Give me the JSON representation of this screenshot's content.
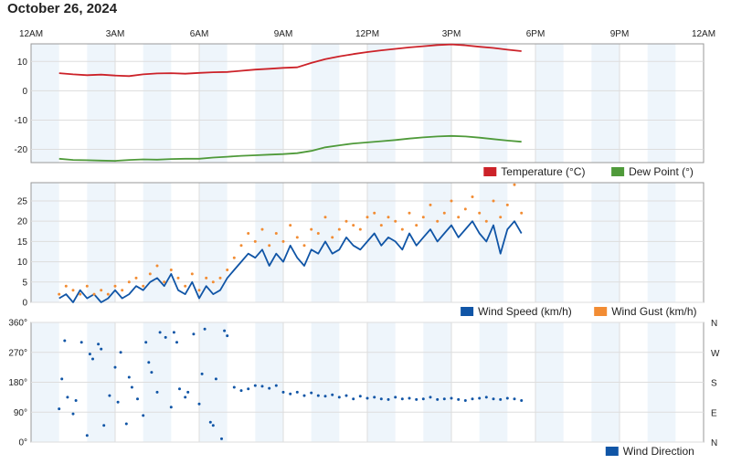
{
  "header": {
    "title": "October 26, 2024"
  },
  "colors": {
    "temperature": "#cc2229",
    "dew_point": "#4f9a3a",
    "wind_speed": "#1055a6",
    "wind_gust": "#f28c33",
    "wind_direction": "#1055a6",
    "band": "#eef5fb",
    "grid": "#dddddd",
    "axis": "#999999"
  },
  "chart_data": [
    {
      "id": "temperature",
      "type": "line",
      "x_range_hours": [
        0,
        24
      ],
      "x_tick_labels": [
        "12AM",
        "3AM",
        "6AM",
        "9AM",
        "12PM",
        "3PM",
        "6PM",
        "9PM",
        "12AM"
      ],
      "ylim": [
        -24.5,
        16
      ],
      "y_ticks": [
        -20,
        -10,
        0,
        10
      ],
      "grid": true,
      "legend_position": "bottom-right",
      "series": [
        {
          "name": "Temperature (°C)",
          "color": "#cc2229",
          "x": [
            1,
            1.5,
            2,
            2.5,
            3,
            3.5,
            4,
            4.5,
            5,
            5.5,
            6,
            6.5,
            7,
            7.5,
            8,
            8.5,
            9,
            9.5,
            10,
            10.5,
            11,
            11.5,
            12,
            12.5,
            13,
            13.5,
            14,
            14.5,
            15,
            15.5,
            16,
            16.5,
            17,
            17.5
          ],
          "y": [
            6,
            5.6,
            5.3,
            5.5,
            5.2,
            5.0,
            5.6,
            5.9,
            6.0,
            5.8,
            6.1,
            6.3,
            6.4,
            6.8,
            7.2,
            7.5,
            7.8,
            8.0,
            9.5,
            10.8,
            11.7,
            12.5,
            13.2,
            13.8,
            14.3,
            14.8,
            15.2,
            15.6,
            15.8,
            15.5,
            15.0,
            14.6,
            14.0,
            13.5
          ]
        },
        {
          "name": "Dew Point (°)",
          "color": "#4f9a3a",
          "x": [
            1,
            1.5,
            2,
            2.5,
            3,
            3.5,
            4,
            4.5,
            5,
            5.5,
            6,
            6.5,
            7,
            7.5,
            8,
            8.5,
            9,
            9.5,
            10,
            10.5,
            11,
            11.5,
            12,
            12.5,
            13,
            13.5,
            14,
            14.5,
            15,
            15.5,
            16,
            16.5,
            17,
            17.5
          ],
          "y": [
            -23.2,
            -23.6,
            -23.7,
            -23.8,
            -23.9,
            -23.6,
            -23.4,
            -23.5,
            -23.3,
            -23.2,
            -23.2,
            -22.8,
            -22.5,
            -22.2,
            -22.0,
            -21.8,
            -21.6,
            -21.3,
            -20.5,
            -19.3,
            -18.6,
            -18.0,
            -17.6,
            -17.2,
            -16.8,
            -16.3,
            -15.9,
            -15.6,
            -15.4,
            -15.6,
            -16.0,
            -16.5,
            -17.0,
            -17.4
          ]
        }
      ]
    },
    {
      "id": "wind",
      "type": "line",
      "x_range_hours": [
        0,
        24
      ],
      "ylim": [
        0,
        29.5
      ],
      "y_ticks": [
        0,
        5,
        10,
        15,
        20,
        25
      ],
      "grid": true,
      "legend_position": "bottom-right",
      "series": [
        {
          "name": "Wind Speed (km/h)",
          "color": "#1055a6",
          "style": "line",
          "x": [
            1,
            1.25,
            1.5,
            1.75,
            2,
            2.25,
            2.5,
            2.75,
            3,
            3.25,
            3.5,
            3.75,
            4,
            4.25,
            4.5,
            4.75,
            5,
            5.25,
            5.5,
            5.75,
            6,
            6.25,
            6.5,
            6.75,
            7,
            7.25,
            7.5,
            7.75,
            8,
            8.25,
            8.5,
            8.75,
            9,
            9.25,
            9.5,
            9.75,
            10,
            10.25,
            10.5,
            10.75,
            11,
            11.25,
            11.5,
            11.75,
            12,
            12.25,
            12.5,
            12.75,
            13,
            13.25,
            13.5,
            13.75,
            14,
            14.25,
            14.5,
            14.75,
            15,
            15.25,
            15.5,
            15.75,
            16,
            16.25,
            16.5,
            16.75,
            17,
            17.25,
            17.5
          ],
          "y": [
            1,
            2,
            0,
            3,
            1,
            2,
            0,
            1,
            3,
            1,
            2,
            4,
            3,
            5,
            6,
            4,
            7,
            3,
            2,
            5,
            1,
            4,
            2,
            3,
            6,
            8,
            10,
            12,
            11,
            13,
            9,
            12,
            10,
            14,
            11,
            9,
            13,
            12,
            15,
            12,
            13,
            16,
            14,
            13,
            15,
            17,
            14,
            16,
            15,
            13,
            17,
            14,
            16,
            18,
            15,
            17,
            19,
            16,
            18,
            20,
            17,
            15,
            19,
            12,
            18,
            20,
            17
          ]
        },
        {
          "name": "Wind Gust (km/h)",
          "color": "#f28c33",
          "style": "dots",
          "x": [
            1,
            1.25,
            1.5,
            1.75,
            2,
            2.25,
            2.5,
            2.75,
            3,
            3.25,
            3.5,
            3.75,
            4,
            4.25,
            4.5,
            4.75,
            5,
            5.25,
            5.5,
            5.75,
            6,
            6.25,
            6.5,
            6.75,
            7,
            7.25,
            7.5,
            7.75,
            8,
            8.25,
            8.5,
            8.75,
            9,
            9.25,
            9.5,
            9.75,
            10,
            10.25,
            10.5,
            10.75,
            11,
            11.25,
            11.5,
            11.75,
            12,
            12.25,
            12.5,
            12.75,
            13,
            13.25,
            13.5,
            13.75,
            14,
            14.25,
            14.5,
            14.75,
            15,
            15.25,
            15.5,
            15.75,
            16,
            16.25,
            16.5,
            16.75,
            17,
            17.25,
            17.5
          ],
          "y": [
            2,
            4,
            3,
            2,
            4,
            2,
            3,
            2,
            4,
            3,
            5,
            6,
            4,
            7,
            9,
            5,
            8,
            6,
            4,
            7,
            3,
            6,
            5,
            6,
            8,
            11,
            14,
            17,
            15,
            18,
            14,
            17,
            15,
            19,
            16,
            14,
            18,
            17,
            21,
            16,
            18,
            20,
            19,
            18,
            21,
            22,
            19,
            21,
            20,
            18,
            22,
            19,
            21,
            24,
            20,
            22,
            25,
            21,
            23,
            26,
            22,
            20,
            25,
            21,
            24,
            29,
            22
          ]
        }
      ]
    },
    {
      "id": "direction",
      "type": "scatter",
      "x_range_hours": [
        0,
        24
      ],
      "ylim": [
        0,
        360
      ],
      "y_ticks": [
        "0°",
        "90°",
        "180°",
        "270°",
        "360°"
      ],
      "y_right_labels": [
        "N",
        "E",
        "S",
        "W",
        "N"
      ],
      "grid": true,
      "legend_position": "bottom-right",
      "series": [
        {
          "name": "Wind Direction",
          "color": "#1055a6",
          "x": [
            1,
            1.1,
            1.2,
            1.3,
            1.5,
            1.6,
            1.8,
            2,
            2.1,
            2.2,
            2.4,
            2.5,
            2.6,
            2.8,
            3,
            3.1,
            3.2,
            3.4,
            3.5,
            3.6,
            3.8,
            4,
            4.1,
            4.2,
            4.3,
            4.5,
            4.6,
            4.8,
            5,
            5.1,
            5.2,
            5.3,
            5.5,
            5.6,
            5.8,
            6,
            6.1,
            6.2,
            6.4,
            6.5,
            6.6,
            6.8,
            6.9,
            7,
            7.25,
            7.5,
            7.75,
            8,
            8.25,
            8.5,
            8.75,
            9,
            9.25,
            9.5,
            9.75,
            10,
            10.25,
            10.5,
            10.75,
            11,
            11.25,
            11.5,
            11.75,
            12,
            12.25,
            12.5,
            12.75,
            13,
            13.25,
            13.5,
            13.75,
            14,
            14.25,
            14.5,
            14.75,
            15,
            15.25,
            15.5,
            15.75,
            16,
            16.25,
            16.5,
            16.75,
            17,
            17.25,
            17.5
          ],
          "y": [
            100,
            190,
            305,
            135,
            85,
            125,
            300,
            20,
            265,
            250,
            295,
            280,
            50,
            140,
            225,
            120,
            270,
            55,
            195,
            165,
            130,
            80,
            300,
            240,
            210,
            150,
            330,
            315,
            105,
            330,
            300,
            160,
            135,
            150,
            325,
            115,
            205,
            340,
            60,
            50,
            190,
            10,
            335,
            320,
            165,
            155,
            160,
            170,
            168,
            162,
            170,
            150,
            145,
            150,
            140,
            148,
            140,
            138,
            142,
            135,
            140,
            130,
            138,
            132,
            135,
            130,
            128,
            135,
            130,
            132,
            128,
            130,
            135,
            128,
            130,
            132,
            128,
            125,
            130,
            132,
            135,
            130,
            128,
            132,
            130,
            125
          ]
        }
      ]
    }
  ]
}
